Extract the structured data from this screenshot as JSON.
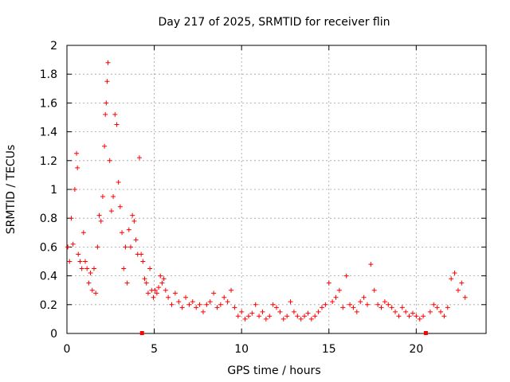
{
  "chart_data": {
    "type": "scatter",
    "title": "Day 217 of 2025, SRMTID for receiver flin",
    "xlabel": "GPS time / hours",
    "ylabel": "SRMTID / TECUs",
    "xlim": [
      0,
      24
    ],
    "ylim": [
      0,
      2
    ],
    "xticks": [
      0,
      5,
      10,
      15,
      20
    ],
    "xtick_labels": [
      "0",
      "5",
      "10",
      "15",
      "20"
    ],
    "yticks": [
      0,
      0.2,
      0.4,
      0.6,
      0.8,
      1,
      1.2,
      1.4,
      1.6,
      1.8,
      2
    ],
    "ytick_labels": [
      "0",
      "0.2",
      "0.4",
      "0.6",
      "0.8",
      "1",
      "1.2",
      "1.4",
      "1.6",
      "1.8",
      "2"
    ],
    "grid": true,
    "marker": "+",
    "color": "#ff0000",
    "gap_markers": [
      {
        "x": 4.3,
        "y": 0
      },
      {
        "x": 20.55,
        "y": 0
      }
    ],
    "series": [
      {
        "name": "SRMTID",
        "x": [
          0.05,
          0.15,
          0.25,
          0.35,
          0.45,
          0.55,
          0.6,
          0.65,
          0.75,
          0.85,
          0.95,
          1.05,
          1.15,
          1.25,
          1.35,
          1.45,
          1.55,
          1.65,
          1.75,
          1.85,
          1.95,
          2.05,
          2.15,
          2.2,
          2.25,
          2.3,
          2.35,
          2.45,
          2.55,
          2.65,
          2.75,
          2.85,
          2.95,
          3.05,
          3.15,
          3.25,
          3.35,
          3.45,
          3.55,
          3.65,
          3.75,
          3.85,
          3.95,
          4.05,
          4.15,
          4.25,
          4.35,
          4.45,
          4.55,
          4.65,
          4.75,
          4.85,
          4.95,
          5.05,
          5.15,
          5.25,
          5.35,
          5.45,
          5.55,
          5.65,
          5.8,
          6.0,
          6.2,
          6.4,
          6.6,
          6.8,
          7.0,
          7.2,
          7.4,
          7.6,
          7.8,
          8.0,
          8.2,
          8.4,
          8.6,
          8.8,
          9.0,
          9.2,
          9.4,
          9.6,
          9.8,
          10.0,
          10.2,
          10.4,
          10.6,
          10.8,
          11.0,
          11.2,
          11.4,
          11.6,
          11.8,
          12.0,
          12.2,
          12.4,
          12.6,
          12.8,
          13.0,
          13.2,
          13.4,
          13.6,
          13.8,
          14.0,
          14.2,
          14.4,
          14.6,
          14.8,
          15.0,
          15.2,
          15.4,
          15.6,
          15.8,
          16.0,
          16.2,
          16.4,
          16.6,
          16.8,
          17.0,
          17.2,
          17.4,
          17.6,
          17.8,
          18.0,
          18.2,
          18.4,
          18.6,
          18.8,
          19.0,
          19.2,
          19.4,
          19.6,
          19.8,
          20.0,
          20.2,
          20.4,
          20.8,
          21.0,
          21.2,
          21.4,
          21.6,
          21.8,
          22.0,
          22.2,
          22.4,
          22.6,
          22.8
        ],
        "y": [
          0.6,
          0.5,
          0.8,
          0.62,
          1.0,
          1.25,
          1.15,
          0.55,
          0.5,
          0.45,
          0.7,
          0.5,
          0.45,
          0.35,
          0.42,
          0.3,
          0.45,
          0.28,
          0.6,
          0.82,
          0.78,
          0.95,
          1.3,
          1.52,
          1.6,
          1.75,
          1.88,
          1.2,
          0.85,
          0.95,
          1.52,
          1.45,
          1.05,
          0.88,
          0.7,
          0.45,
          0.6,
          0.35,
          0.72,
          0.6,
          0.82,
          0.78,
          0.65,
          0.55,
          1.22,
          0.55,
          0.5,
          0.38,
          0.35,
          0.28,
          0.45,
          0.3,
          0.25,
          0.3,
          0.28,
          0.32,
          0.4,
          0.35,
          0.38,
          0.3,
          0.25,
          0.2,
          0.28,
          0.22,
          0.18,
          0.25,
          0.2,
          0.22,
          0.18,
          0.2,
          0.15,
          0.2,
          0.22,
          0.28,
          0.18,
          0.2,
          0.25,
          0.22,
          0.3,
          0.18,
          0.12,
          0.15,
          0.1,
          0.12,
          0.14,
          0.2,
          0.12,
          0.15,
          0.1,
          0.12,
          0.2,
          0.18,
          0.15,
          0.1,
          0.12,
          0.22,
          0.15,
          0.12,
          0.1,
          0.12,
          0.14,
          0.1,
          0.12,
          0.15,
          0.18,
          0.2,
          0.35,
          0.22,
          0.25,
          0.3,
          0.18,
          0.4,
          0.2,
          0.18,
          0.15,
          0.22,
          0.25,
          0.2,
          0.48,
          0.3,
          0.2,
          0.18,
          0.22,
          0.2,
          0.18,
          0.15,
          0.12,
          0.18,
          0.15,
          0.12,
          0.14,
          0.12,
          0.1,
          0.12,
          0.15,
          0.2,
          0.18,
          0.15,
          0.12,
          0.18,
          0.38,
          0.42,
          0.3,
          0.35,
          0.25
        ]
      }
    ]
  }
}
